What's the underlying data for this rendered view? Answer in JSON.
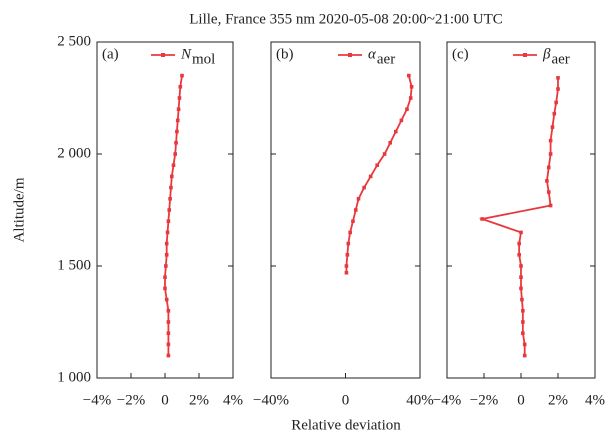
{
  "figure": {
    "title": "Lille, France 355 nm    2020-05-08    20:00~21:00 UTC",
    "ylabel": "Altitude/m",
    "xlabel": "Relative deviation",
    "ylim": [
      1000,
      2500
    ],
    "yticks": [
      {
        "value": 1000,
        "label": "1 000"
      },
      {
        "value": 1500,
        "label": "1 500"
      },
      {
        "value": 2000,
        "label": "2 000"
      },
      {
        "value": 2500,
        "label": "2 500"
      }
    ]
  },
  "chart_data": [
    {
      "type": "line",
      "label": "(a)",
      "xlim": [
        -4,
        4
      ],
      "xticks": [
        {
          "value": -4,
          "label": "−4%"
        },
        {
          "value": -2,
          "label": "−2%"
        },
        0,
        {
          "value": 2,
          "label": "2%"
        },
        {
          "value": 4,
          "label": "4%"
        }
      ],
      "series": [
        {
          "name": "N",
          "subscript": "mol",
          "color": "#e8383d",
          "y": [
            1100,
            1150,
            1200,
            1250,
            1300,
            1350,
            1400,
            1450,
            1500,
            1550,
            1600,
            1650,
            1700,
            1750,
            1800,
            1850,
            1900,
            1950,
            2000,
            2050,
            2100,
            2150,
            2200,
            2250,
            2300,
            2350
          ],
          "values": [
            0.2,
            0.2,
            0.2,
            0.2,
            0.2,
            0.1,
            0.0,
            0.0,
            0.05,
            0.1,
            0.1,
            0.15,
            0.2,
            0.25,
            0.3,
            0.35,
            0.4,
            0.5,
            0.6,
            0.65,
            0.7,
            0.75,
            0.8,
            0.85,
            0.9,
            1.0
          ]
        }
      ]
    },
    {
      "type": "line",
      "label": "(b)",
      "xlim": [
        -40,
        40
      ],
      "xticks": [
        {
          "value": -40,
          "label": "−40%"
        },
        0,
        {
          "value": 40,
          "label": "40%"
        }
      ],
      "series": [
        {
          "name": "α",
          "subscript": "aer",
          "color": "#e8383d",
          "y": [
            1470,
            1500,
            1550,
            1600,
            1650,
            1700,
            1750,
            1800,
            1850,
            1900,
            1950,
            2000,
            2050,
            2100,
            2150,
            2200,
            2250,
            2300,
            2350
          ],
          "values": [
            0.5,
            0.5,
            1,
            1.5,
            2.5,
            4,
            5.5,
            7,
            10,
            13.5,
            17,
            21,
            24,
            27,
            30,
            33,
            35,
            35.5,
            34
          ]
        }
      ]
    },
    {
      "type": "line",
      "label": "(c)",
      "xlim": [
        -4,
        4
      ],
      "xticks": [
        {
          "value": -4,
          "label": "−4%"
        },
        {
          "value": -2,
          "label": "−2%"
        },
        0,
        {
          "value": 2,
          "label": "2%"
        },
        {
          "value": 4,
          "label": "4%"
        }
      ],
      "series": [
        {
          "name": "β",
          "subscript": "aer",
          "color": "#e8383d",
          "y": [
            1100,
            1150,
            1200,
            1250,
            1300,
            1350,
            1400,
            1450,
            1500,
            1550,
            1600,
            1650,
            1710,
            1770,
            1830,
            1880,
            1940,
            2000,
            2060,
            2120,
            2180,
            2230,
            2290,
            2340
          ],
          "values": [
            0.2,
            0.2,
            0.1,
            0.1,
            0.1,
            0.05,
            0,
            0,
            0,
            -0.1,
            -0.1,
            0,
            -2.1,
            1.6,
            1.5,
            1.4,
            1.5,
            1.6,
            1.6,
            1.7,
            1.8,
            1.9,
            2.0,
            2.0
          ]
        }
      ]
    }
  ]
}
